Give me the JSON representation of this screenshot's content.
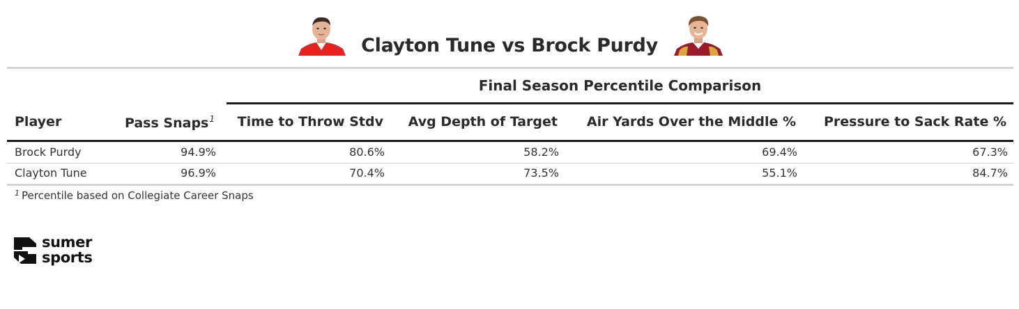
{
  "title": "Clayton Tune vs Brock Purdy",
  "headshots": {
    "left_icon": "player-headshot-icon",
    "right_icon": "player-headshot-icon"
  },
  "table": {
    "spanner": "Final Season Percentile Comparison",
    "columns": {
      "player": "Player",
      "pass_snaps": "Pass Snaps",
      "pass_snaps_footnote_mark": "1",
      "ttt": "Time to Throw Stdv",
      "adot": "Avg Depth of Target",
      "middle": "Air Yards Over the Middle %",
      "p2s": "Pressure to Sack Rate %"
    },
    "rows": [
      {
        "player": "Brock Purdy",
        "pass_snaps": "94.9%",
        "ttt": "80.6%",
        "adot": "58.2%",
        "middle": "69.4%",
        "p2s": "67.3%"
      },
      {
        "player": "Clayton Tune",
        "pass_snaps": "96.9%",
        "ttt": "70.4%",
        "adot": "73.5%",
        "middle": "55.1%",
        "p2s": "84.7%"
      }
    ],
    "footnote_mark": "1",
    "footnote": "Percentile based on Collegiate Career Snaps"
  },
  "logo": {
    "line1": "sumer",
    "line2": "sports",
    "icon": "sumer-sports-logo-icon"
  },
  "colors": {
    "text": "#222222",
    "rule_light": "#d3d3d3",
    "rule_dark": "#1a1a1a",
    "jersey_left": "#e8221e",
    "jersey_right": "#9b1b2a"
  }
}
